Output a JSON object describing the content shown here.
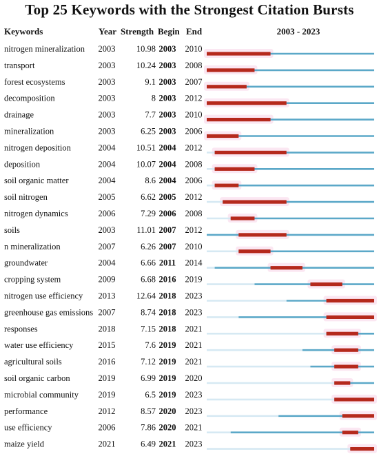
{
  "chart_data": {
    "type": "table",
    "title": "Top 25 Keywords with the Strongest Citation Bursts",
    "headers": {
      "keywords": "Keywords",
      "year": "Year",
      "strength": "Strength",
      "begin": "Begin",
      "end": "End",
      "range": "2003 - 2023"
    },
    "timeline": {
      "start": 2003,
      "end": 2023
    },
    "colors": {
      "baseline_prior": "#d6e9f3",
      "baseline": "#5ba8c8",
      "burst": "#b5291c",
      "burst_glow": "#f7c9e3"
    },
    "rows": [
      {
        "keyword": "nitrogen mineralization",
        "year": 2003,
        "strength": "10.98",
        "begin": 2003,
        "end": 2010
      },
      {
        "keyword": "transport",
        "year": 2003,
        "strength": "10.24",
        "begin": 2003,
        "end": 2008
      },
      {
        "keyword": "forest ecosystems",
        "year": 2003,
        "strength": "9.1",
        "begin": 2003,
        "end": 2007
      },
      {
        "keyword": "decomposition",
        "year": 2003,
        "strength": "8",
        "begin": 2003,
        "end": 2012
      },
      {
        "keyword": "drainage",
        "year": 2003,
        "strength": "7.7",
        "begin": 2003,
        "end": 2010
      },
      {
        "keyword": "mineralization",
        "year": 2003,
        "strength": "6.25",
        "begin": 2003,
        "end": 2006
      },
      {
        "keyword": "nitrogen deposition",
        "year": 2004,
        "strength": "10.51",
        "begin": 2004,
        "end": 2012
      },
      {
        "keyword": "deposition",
        "year": 2004,
        "strength": "10.07",
        "begin": 2004,
        "end": 2008
      },
      {
        "keyword": "soil organic matter",
        "year": 2004,
        "strength": "8.6",
        "begin": 2004,
        "end": 2006
      },
      {
        "keyword": "soil nitrogen",
        "year": 2005,
        "strength": "6.62",
        "begin": 2005,
        "end": 2012
      },
      {
        "keyword": "nitrogen dynamics",
        "year": 2006,
        "strength": "7.29",
        "begin": 2006,
        "end": 2008
      },
      {
        "keyword": "soils",
        "year": 2003,
        "strength": "11.01",
        "begin": 2007,
        "end": 2012
      },
      {
        "keyword": "n mineralization",
        "year": 2007,
        "strength": "6.26",
        "begin": 2007,
        "end": 2010
      },
      {
        "keyword": "groundwater",
        "year": 2004,
        "strength": "6.66",
        "begin": 2011,
        "end": 2014
      },
      {
        "keyword": "cropping system",
        "year": 2009,
        "strength": "6.68",
        "begin": 2016,
        "end": 2019
      },
      {
        "keyword": "nitrogen use efficiency",
        "year": 2013,
        "strength": "12.64",
        "begin": 2018,
        "end": 2023
      },
      {
        "keyword": "greenhouse gas emissions",
        "year": 2007,
        "strength": "8.74",
        "begin": 2018,
        "end": 2023
      },
      {
        "keyword": "responses",
        "year": 2018,
        "strength": "7.15",
        "begin": 2018,
        "end": 2021
      },
      {
        "keyword": "water use efficiency",
        "year": 2015,
        "strength": "7.6",
        "begin": 2019,
        "end": 2021
      },
      {
        "keyword": "agricultural soils",
        "year": 2016,
        "strength": "7.12",
        "begin": 2019,
        "end": 2021
      },
      {
        "keyword": "soil organic carbon",
        "year": 2019,
        "strength": "6.99",
        "begin": 2019,
        "end": 2020
      },
      {
        "keyword": "microbial community",
        "year": 2019,
        "strength": "6.5",
        "begin": 2019,
        "end": 2023
      },
      {
        "keyword": "performance",
        "year": 2012,
        "strength": "8.57",
        "begin": 2020,
        "end": 2023
      },
      {
        "keyword": "use efficiency",
        "year": 2006,
        "strength": "7.86",
        "begin": 2020,
        "end": 2021
      },
      {
        "keyword": "maize yield",
        "year": 2021,
        "strength": "6.49",
        "begin": 2021,
        "end": 2023
      }
    ]
  }
}
